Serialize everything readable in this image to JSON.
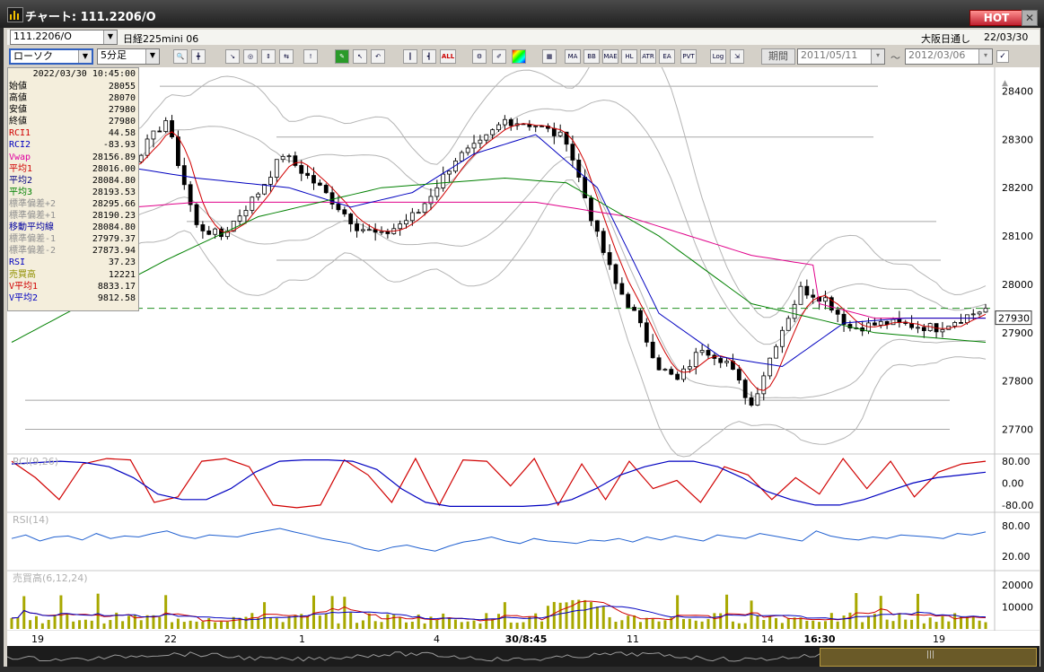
{
  "window": {
    "title": "チャート: 111.2206/O",
    "hot_label": "HOT",
    "close_label": "✕"
  },
  "header": {
    "symbol_value": "111.2206/O",
    "symbol_name": "日経225mini 06",
    "session_label": "大阪日通し",
    "session_date": "22/03/30",
    "chart_type": "ローソク",
    "interval": "5分足",
    "period_label": "期間",
    "date_from": "2011/05/11",
    "date_sep": "〜",
    "date_to": "2012/03/06"
  },
  "toolbar": {
    "buttons": [
      "MA",
      "BB",
      "MAE",
      "HL",
      "ATR",
      "EA",
      "PVT",
      "Log",
      "ALL"
    ]
  },
  "info": {
    "datetime": "2022/03/30  10:45:00",
    "rows": [
      {
        "label": "始値",
        "value": "28055",
        "color": "#000000"
      },
      {
        "label": "高値",
        "value": "28070",
        "color": "#000000"
      },
      {
        "label": "安値",
        "value": "27980",
        "color": "#000000"
      },
      {
        "label": "終値",
        "value": "27980",
        "color": "#000000"
      },
      {
        "label": "RCI1",
        "value": "44.58",
        "color": "#d00000"
      },
      {
        "label": "RCI2",
        "value": "-83.93",
        "color": "#0000c0"
      },
      {
        "label": "Vwap",
        "value": "28156.89",
        "color": "#e000a0"
      },
      {
        "label": "平均1",
        "value": "28016.00",
        "color": "#d00000"
      },
      {
        "label": "平均2",
        "value": "28084.80",
        "color": "#000080"
      },
      {
        "label": "平均3",
        "value": "28193.53",
        "color": "#008000"
      },
      {
        "label": "標準偏差+2",
        "value": "28295.66",
        "color": "#909090"
      },
      {
        "label": "標準偏差+1",
        "value": "28190.23",
        "color": "#909090"
      },
      {
        "label": "移動平均線",
        "value": "28084.80",
        "color": "#0000a0"
      },
      {
        "label": "標準偏差-1",
        "value": "27979.37",
        "color": "#909090"
      },
      {
        "label": "標準偏差-2",
        "value": "27873.94",
        "color": "#909090"
      },
      {
        "label": "RSI",
        "value": "37.23",
        "color": "#0000c0"
      },
      {
        "label": "売買高",
        "value": "12221",
        "color": "#909000"
      },
      {
        "label": "V平均1",
        "value": "8833.17",
        "color": "#d00000"
      },
      {
        "label": "V平均2",
        "value": "9812.58",
        "color": "#0000c0"
      }
    ]
  },
  "chart_data": [
    {
      "type": "candlestick",
      "ylim": [
        27660,
        28440
      ],
      "y_ticks": [
        "28400",
        "28300",
        "28200",
        "28100",
        "28000",
        "27900",
        "27800",
        "27700"
      ],
      "current_price": "27930",
      "x_tick_labels": [
        "19",
        "22",
        "1",
        "4",
        "30/8:45",
        "11",
        "14",
        "16:30",
        "19"
      ],
      "close_path": [
        [
          0,
          28140
        ],
        [
          10,
          28190
        ],
        [
          20,
          28260
        ],
        [
          25,
          28340
        ],
        [
          30,
          28120
        ],
        [
          34,
          28100
        ],
        [
          40,
          28190
        ],
        [
          44,
          28270
        ],
        [
          50,
          28200
        ],
        [
          56,
          28120
        ],
        [
          60,
          28100
        ],
        [
          66,
          28150
        ],
        [
          72,
          28260
        ],
        [
          76,
          28290
        ],
        [
          80,
          28340
        ],
        [
          85,
          28330
        ],
        [
          90,
          28300
        ],
        [
          95,
          28100
        ],
        [
          98,
          28000
        ],
        [
          101,
          27940
        ],
        [
          105,
          27830
        ],
        [
          108,
          27800
        ],
        [
          112,
          27870
        ],
        [
          116,
          27840
        ],
        [
          120,
          27750
        ],
        [
          124,
          27880
        ],
        [
          128,
          27990
        ],
        [
          132,
          27970
        ],
        [
          136,
          27910
        ],
        [
          142,
          27920
        ],
        [
          150,
          27910
        ],
        [
          154,
          27930
        ],
        [
          158,
          27950
        ]
      ],
      "series": [
        {
          "name": "Vwap",
          "color": "#e0008a",
          "points": [
            [
              0,
              28110
            ],
            [
              20,
              28160
            ],
            [
              30,
              28170
            ],
            [
              60,
              28170
            ],
            [
              85,
              28170
            ],
            [
              100,
              28140
            ],
            [
              120,
              28060
            ],
            [
              130,
              28040
            ],
            [
              131,
              27960
            ],
            [
              140,
              27930
            ],
            [
              158,
              27930
            ]
          ]
        },
        {
          "name": "平均2",
          "color": "#0000c0",
          "points": [
            [
              0,
              28180
            ],
            [
              20,
              28240
            ],
            [
              30,
              28220
            ],
            [
              45,
              28200
            ],
            [
              55,
              28160
            ],
            [
              65,
              28190
            ],
            [
              75,
              28270
            ],
            [
              85,
              28310
            ],
            [
              95,
              28200
            ],
            [
              105,
              27940
            ],
            [
              115,
              27850
            ],
            [
              125,
              27830
            ],
            [
              135,
              27920
            ],
            [
              145,
              27930
            ],
            [
              158,
              27930
            ]
          ]
        },
        {
          "name": "平均3",
          "color": "#008000",
          "points": [
            [
              0,
              27880
            ],
            [
              25,
              28050
            ],
            [
              40,
              28140
            ],
            [
              60,
              28200
            ],
            [
              80,
              28220
            ],
            [
              90,
              28210
            ],
            [
              105,
              28100
            ],
            [
              120,
              27960
            ],
            [
              130,
              27930
            ],
            [
              140,
              27900
            ],
            [
              158,
              27880
            ]
          ]
        }
      ]
    },
    {
      "type": "line",
      "title": "RCI(9,26)",
      "ylim": [
        -100,
        100
      ],
      "y_ticks": [
        "80.00",
        "0.00",
        "-80.00"
      ],
      "series": [
        {
          "name": "RCI1",
          "color": "#d00000",
          "values": [
            80,
            20,
            -60,
            70,
            90,
            85,
            -70,
            -50,
            80,
            90,
            60,
            -80,
            -90,
            -80,
            85,
            30,
            -70,
            90,
            -80,
            85,
            80,
            -10,
            90,
            -80,
            70,
            -60,
            80,
            -20,
            10,
            -70,
            60,
            30,
            -60,
            20,
            -40,
            90,
            -20,
            80,
            -50,
            40,
            70,
            80
          ]
        },
        {
          "name": "RCI2",
          "color": "#0000c0",
          "values": [
            70,
            75,
            80,
            75,
            60,
            20,
            -40,
            -60,
            -60,
            -20,
            40,
            80,
            85,
            85,
            80,
            50,
            -20,
            -70,
            -85,
            -85,
            -85,
            -85,
            -80,
            -60,
            -20,
            30,
            60,
            80,
            80,
            60,
            20,
            -30,
            -60,
            -80,
            -80,
            -60,
            -30,
            0,
            20,
            30,
            40
          ]
        }
      ]
    },
    {
      "type": "line",
      "title": "RSI(14)",
      "ylim": [
        0,
        100
      ],
      "y_ticks": [
        "80.00",
        "20.00"
      ],
      "series": [
        {
          "name": "RSI",
          "color": "#2060d0",
          "values": [
            55,
            62,
            50,
            58,
            60,
            52,
            65,
            55,
            60,
            58,
            65,
            70,
            60,
            55,
            62,
            60,
            58,
            65,
            70,
            75,
            68,
            62,
            55,
            50,
            45,
            35,
            30,
            38,
            42,
            35,
            30,
            40,
            48,
            52,
            58,
            50,
            45,
            55,
            50,
            48,
            45,
            52,
            50,
            55,
            48,
            58,
            52,
            60,
            55,
            50,
            62,
            58,
            55,
            65,
            60,
            55,
            50,
            70,
            60,
            55,
            52,
            58,
            55,
            62,
            60,
            58,
            55,
            65,
            62,
            68
          ]
        }
      ]
    },
    {
      "type": "bar",
      "title": "売買高(6,12,24)",
      "ylim": [
        0,
        25000
      ],
      "y_ticks": [
        "20000",
        "10000"
      ]
    }
  ]
}
